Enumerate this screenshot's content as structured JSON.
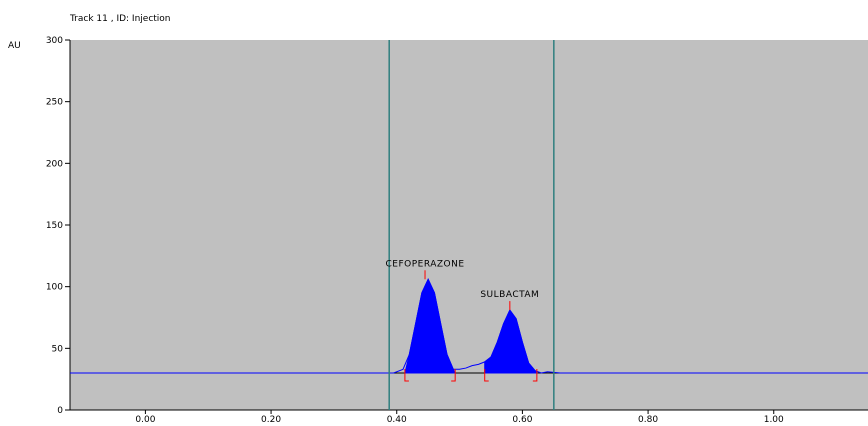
{
  "header": {
    "track_label": "Track  11 , ID: Injection"
  },
  "chart_data": {
    "type": "line",
    "title": "Track  11 , ID: Injection",
    "ylabel": "AU",
    "xlabel": "",
    "xlim": [
      -0.12,
      1.15
    ],
    "ylim": [
      0,
      300
    ],
    "yticks": [
      0,
      50,
      100,
      150,
      200,
      250,
      300
    ],
    "xticks": [
      0.0,
      0.2,
      0.4,
      0.6,
      0.8,
      1.0
    ],
    "xtick_labels": [
      "0.00",
      "0.20",
      "0.40",
      "0.60",
      "0.80",
      "1.00"
    ],
    "baseline": 30,
    "series": [
      {
        "x": [
          -0.12,
          -0.05,
          0.0,
          0.2,
          0.38,
          0.395,
          0.41,
          0.42,
          0.43,
          0.44,
          0.45,
          0.46,
          0.47,
          0.48,
          0.49,
          0.5,
          0.51,
          0.52,
          0.53,
          0.54,
          0.55,
          0.56,
          0.57,
          0.58,
          0.59,
          0.6,
          0.61,
          0.62,
          0.63,
          0.64,
          0.66,
          0.8,
          1.0,
          1.06,
          1.15
        ],
        "values": [
          30,
          30,
          30,
          30,
          30,
          30,
          33,
          45,
          70,
          95,
          106,
          95,
          70,
          45,
          33,
          33,
          34,
          36,
          37,
          39,
          43,
          55,
          70,
          81,
          74,
          55,
          38,
          32,
          30,
          31,
          30,
          30,
          30,
          30,
          30
        ]
      }
    ],
    "peaks": [
      {
        "name": "CEFOPERAZONE",
        "x": 0.445,
        "y": 106,
        "start": 0.413,
        "end": 0.493
      },
      {
        "name": "SULBACTAM",
        "x": 0.58,
        "y": 81,
        "start": 0.54,
        "end": 0.623
      }
    ],
    "markers": [
      0.388,
      0.65
    ],
    "colors": {
      "plot_bg": "#c0c0c0",
      "trace": "#0000ff",
      "fill": "#0000ff",
      "marker": "#2f7f7f",
      "integration": "#ff0000",
      "baseline": "#000000"
    }
  }
}
